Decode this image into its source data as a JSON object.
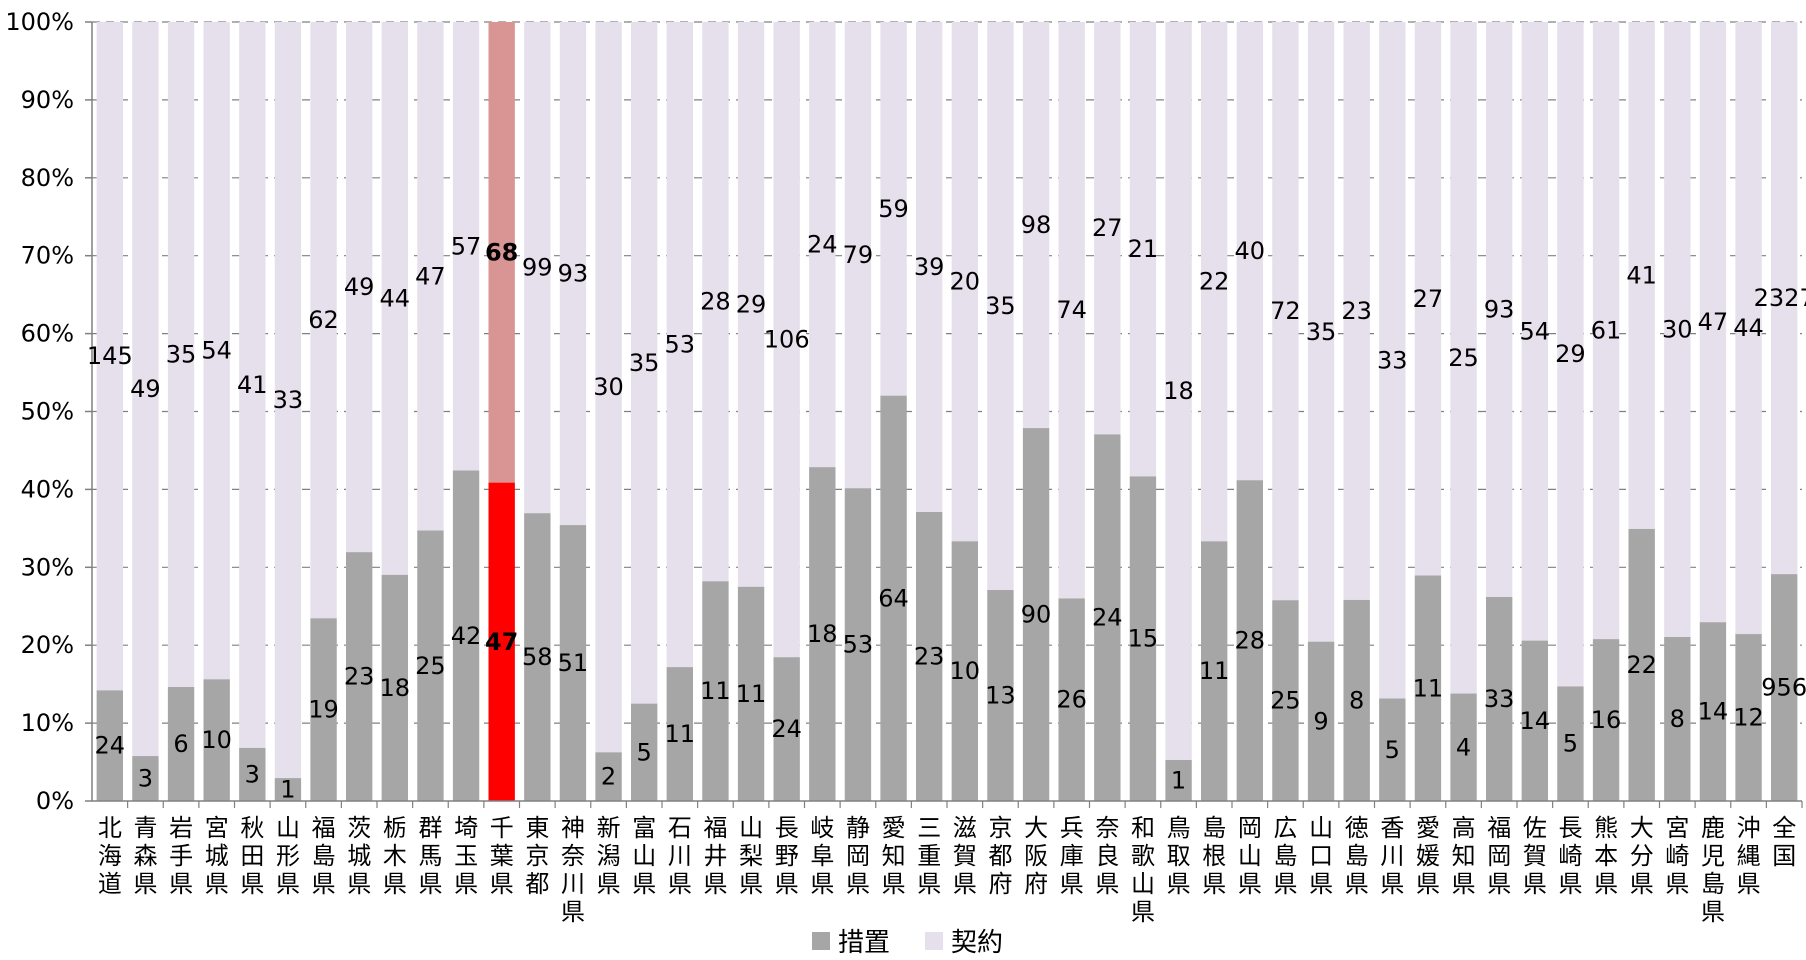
{
  "chart_data": {
    "type": "bar",
    "stacked": "percent",
    "title": "",
    "xlabel": "",
    "ylabel": "",
    "ylim": [
      0,
      100
    ],
    "y_ticks": [
      "0%",
      "10%",
      "20%",
      "30%",
      "40%",
      "50%",
      "60%",
      "70%",
      "80%",
      "90%",
      "100%"
    ],
    "grid": "horizontal dashed",
    "legend": "bottom-center",
    "highlight_index": 11,
    "colors": {
      "sochi": "#a6a6a6",
      "keiyaku": "#e6e0ec",
      "sochi_highlight": "#ff0000",
      "keiyaku_highlight": "#d99594"
    },
    "categories": [
      "北海道",
      "青森県",
      "岩手県",
      "宮城県",
      "秋田県",
      "山形県",
      "福島県",
      "茨城県",
      "栃木県",
      "群馬県",
      "埼玉県",
      "千葉県",
      "東京都",
      "神奈川県",
      "新潟県",
      "富山県",
      "石川県",
      "福井県",
      "山梨県",
      "長野県",
      "岐阜県",
      "静岡県",
      "愛知県",
      "三重県",
      "滋賀県",
      "京都府",
      "大阪府",
      "兵庫県",
      "奈良県",
      "和歌山県",
      "鳥取県",
      "島根県",
      "岡山県",
      "広島県",
      "山口県",
      "徳島県",
      "香川県",
      "愛媛県",
      "高知県",
      "福岡県",
      "佐賀県",
      "長崎県",
      "熊本県",
      "大分県",
      "宮崎県",
      "鹿児島県",
      "沖縄県",
      "全国"
    ],
    "series": [
      {
        "name": "措置",
        "values": [
          24,
          3,
          6,
          10,
          3,
          1,
          19,
          23,
          18,
          25,
          42,
          47,
          58,
          51,
          2,
          5,
          11,
          11,
          11,
          24,
          18,
          53,
          64,
          23,
          10,
          13,
          90,
          26,
          24,
          15,
          1,
          11,
          28,
          25,
          9,
          8,
          5,
          11,
          4,
          33,
          14,
          5,
          16,
          22,
          8,
          14,
          12,
          956
        ]
      },
      {
        "name": "契約",
        "values": [
          145,
          49,
          35,
          54,
          41,
          33,
          62,
          49,
          44,
          47,
          57,
          68,
          99,
          93,
          30,
          35,
          53,
          28,
          29,
          106,
          24,
          79,
          59,
          39,
          20,
          35,
          98,
          74,
          27,
          21,
          18,
          22,
          40,
          72,
          35,
          23,
          33,
          27,
          25,
          93,
          54,
          29,
          61,
          41,
          30,
          47,
          44,
          2327
        ]
      }
    ]
  }
}
